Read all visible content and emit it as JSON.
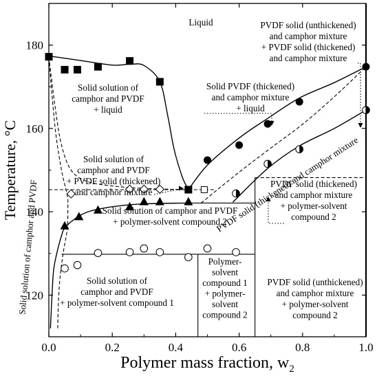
{
  "chart_data": {
    "type": "scatter",
    "title": "",
    "xlabel": "Polymer mass fraction, w",
    "xlabel_sub": "2",
    "ylabel": "Temperature, °C",
    "xlim": [
      0.0,
      1.0
    ],
    "ylim": [
      110,
      190
    ],
    "x_ticks": [
      0.0,
      0.2,
      0.4,
      0.6,
      0.8,
      1.0
    ],
    "x_tick_labels": [
      "0.0",
      "0.2",
      "0.4",
      "0.6",
      "0.8",
      "1.0"
    ],
    "y_ticks": [
      120,
      140,
      160,
      180
    ],
    "y_tick_labels": [
      "120",
      "140",
      "160",
      "180"
    ],
    "grid": false,
    "legend": "none",
    "series": [
      {
        "marker": "square-filled",
        "points": [
          [
            0.0,
            177.2
          ],
          [
            0.05,
            174.1
          ],
          [
            0.09,
            174.1
          ],
          [
            0.155,
            174.8
          ],
          [
            0.255,
            176.2
          ],
          [
            0.35,
            171.2
          ],
          [
            0.44,
            145.3
          ]
        ]
      },
      {
        "marker": "circle-filled",
        "points": [
          [
            0.5,
            152.4
          ],
          [
            0.6,
            156.0
          ],
          [
            0.69,
            161.1
          ],
          [
            0.79,
            166.4
          ],
          [
            1.0,
            174.8
          ]
        ]
      },
      {
        "marker": "circle-half",
        "points": [
          [
            0.59,
            144.4
          ],
          [
            0.69,
            151.5
          ],
          [
            0.79,
            155.0
          ],
          [
            1.0,
            164.4
          ]
        ]
      },
      {
        "marker": "triangle-filled",
        "points": [
          [
            0.05,
            136.6
          ],
          [
            0.095,
            138.8
          ],
          [
            0.155,
            140.4
          ],
          [
            0.255,
            141.2
          ],
          [
            0.3,
            142.4
          ],
          [
            0.35,
            142.4
          ],
          [
            0.44,
            142.4
          ]
        ]
      },
      {
        "marker": "diamond-open",
        "points": [
          [
            0.07,
            144.3
          ],
          [
            0.255,
            145.4
          ],
          [
            0.3,
            145.4
          ],
          [
            0.35,
            145.4
          ]
        ]
      },
      {
        "marker": "square-open",
        "points": [
          [
            0.49,
            145.3
          ]
        ]
      },
      {
        "marker": "circle-open",
        "points": [
          [
            0.05,
            126.4
          ],
          [
            0.09,
            127.2
          ],
          [
            0.155,
            130.1
          ],
          [
            0.255,
            130.3
          ],
          [
            0.3,
            131.2
          ],
          [
            0.35,
            130.3
          ],
          [
            0.44,
            129.1
          ],
          [
            0.5,
            131.2
          ],
          [
            0.59,
            130.3
          ]
        ]
      }
    ],
    "curves": {
      "liquidus_left": [
        [
          0.0,
          177.4
        ],
        [
          0.1,
          176.3
        ],
        [
          0.2,
          175.2
        ],
        [
          0.255,
          175.4
        ],
        [
          0.3,
          175.1
        ],
        [
          0.35,
          171.2
        ],
        [
          0.375,
          163.0
        ],
        [
          0.395,
          155.0
        ],
        [
          0.42,
          148.5
        ],
        [
          0.44,
          145.3
        ]
      ],
      "liquidus_right": [
        [
          0.44,
          145.3
        ],
        [
          0.5,
          151.2
        ],
        [
          0.6,
          157.7
        ],
        [
          0.69,
          162.4
        ],
        [
          0.79,
          167.3
        ],
        [
          0.9,
          171.0
        ],
        [
          1.0,
          174.8
        ]
      ],
      "solvus_dashed": [
        [
          0.0,
          177.2
        ],
        [
          0.02,
          165.0
        ],
        [
          0.04,
          156.0
        ],
        [
          0.07,
          150.0
        ],
        [
          0.12,
          147.3
        ],
        [
          0.2,
          146.2
        ],
        [
          0.3,
          145.6
        ],
        [
          0.44,
          145.3
        ]
      ],
      "solidus_triangles": [
        [
          0.045,
          135.5
        ],
        [
          0.07,
          137.6
        ],
        [
          0.12,
          139.9
        ],
        [
          0.2,
          141.2
        ],
        [
          0.3,
          141.9
        ],
        [
          0.44,
          142.1
        ]
      ],
      "solid_solution_boundary": [
        [
          0.005,
          112.0
        ],
        [
          0.01,
          120.0
        ],
        [
          0.015,
          126.0
        ],
        [
          0.025,
          130.0
        ],
        [
          0.035,
          133.0
        ],
        [
          0.045,
          135.5
        ]
      ],
      "dashed_left_boundary": [
        [
          0.0,
          177.0
        ],
        [
          0.02,
          160.0
        ],
        [
          0.04,
          150.0
        ],
        [
          0.058,
          144.0
        ],
        [
          0.06,
          142.0
        ],
        [
          0.058,
          136.0
        ],
        [
          0.045,
          130.0
        ],
        [
          0.035,
          124.0
        ],
        [
          0.03,
          118.0
        ],
        [
          0.028,
          112.0
        ]
      ],
      "lower_right_curve": [
        [
          0.58,
          142.3
        ],
        [
          0.69,
          150.4
        ],
        [
          0.79,
          155.8
        ],
        [
          0.9,
          160.0
        ],
        [
          1.0,
          164.4
        ]
      ],
      "thickened_dashed": [
        [
          0.48,
          142.1
        ],
        [
          0.6,
          149.5
        ],
        [
          0.7,
          155.3
        ],
        [
          0.8,
          161.0
        ],
        [
          0.9,
          167.6
        ],
        [
          1.0,
          174.8
        ]
      ],
      "eutectic_line": [
        [
          0.44,
          142.1
        ],
        [
          0.65,
          142.1
        ]
      ],
      "eutectic_dashed": [
        [
          0.0,
          145.3
        ],
        [
          0.44,
          145.3
        ]
      ],
      "eutectic_dashed_right": [
        [
          0.44,
          145.3
        ],
        [
          0.52,
          145.3
        ]
      ],
      "lower_invariant": [
        [
          0.04,
          129.8
        ],
        [
          0.65,
          129.8
        ]
      ],
      "vertical_left_divider": [
        [
          0.47,
          110.0
        ],
        [
          0.47,
          129.8
        ]
      ],
      "vertical_right_divider": [
        [
          0.65,
          110.0
        ],
        [
          0.65,
          148.2
        ]
      ],
      "dashed_box_top": [
        [
          0.65,
          148.2
        ],
        [
          1.0,
          148.2
        ]
      ],
      "right_axis_vertical": [
        [
          1.0,
          110.0
        ],
        [
          1.0,
          190.0
        ]
      ]
    },
    "annotations": [
      {
        "lines": [
          "Liquid"
        ]
      },
      {
        "lines": [
          "PVDF solid (unthickened)",
          "and camphor mixture",
          "+ PVDF solid (thickened)",
          "and camphor mixture"
        ]
      },
      {
        "lines": [
          "Solid solution of",
          "camphor and PVDF",
          "+ liquid"
        ]
      },
      {
        "lines": [
          "Solid PVDF (thickened)",
          "and camphor mixture",
          "+ liquid"
        ]
      },
      {
        "lines": [
          "Solid solution of",
          "camphor and PVDF",
          "+ PVDF solid (thickened)",
          "and camphor mixture"
        ]
      },
      {
        "lines": [
          "PVDF solid (thickened) and camphor mixture"
        ]
      },
      {
        "lines": [
          "PVDF solid (thickened)",
          "and camphor mixture",
          "+ polymer-solvent",
          "compound 2"
        ]
      },
      {
        "lines": [
          "Solid solution of camphor and PVDF"
        ]
      },
      {
        "lines": [
          "Solid solution of camphor and PVDF",
          "+ polymer-solvent compound 2"
        ]
      },
      {
        "lines": [
          "Solid solution of",
          "camphor and PVDF",
          "+ polymer-solvent compound 1"
        ]
      },
      {
        "lines": [
          "Polymer-",
          "solvent",
          "compound 1",
          "+ polymer-",
          "solvent",
          "compound 2"
        ]
      },
      {
        "lines": [
          "PVDF solid (unthickened)",
          "and camphor mixture",
          "+ polymer-solvent",
          "compound 2"
        ]
      }
    ]
  }
}
